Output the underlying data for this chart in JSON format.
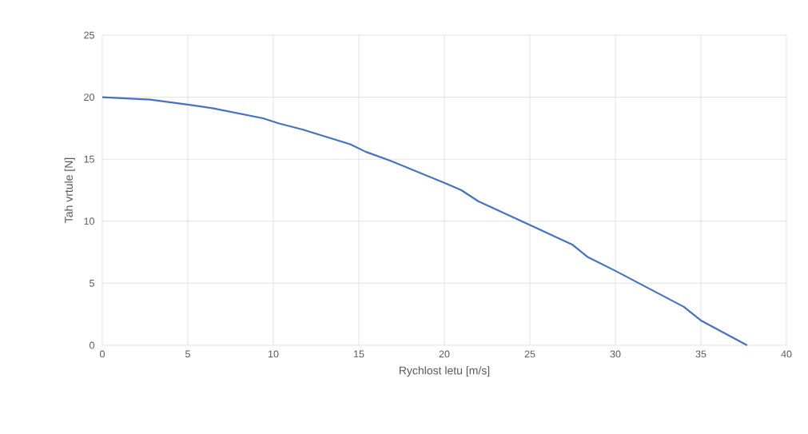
{
  "chart_data": {
    "type": "line",
    "xlabel": "Rychlost letu [m/s]",
    "ylabel": "Tah vrtule [N]",
    "x": [
      0,
      2.8,
      5,
      6.5,
      9.4,
      10.3,
      11.7,
      14.5,
      15.4,
      16.8,
      20,
      21,
      22,
      25,
      27.5,
      28.4,
      30,
      34,
      35,
      37.7
    ],
    "series": [
      {
        "color": "#4472c4",
        "values": [
          20,
          19.8,
          19.4,
          19.1,
          18.3,
          17.9,
          17.4,
          16.2,
          15.6,
          14.9,
          13.1,
          12.5,
          11.6,
          9.7,
          8.1,
          7.1,
          6,
          3.1,
          2,
          0
        ]
      }
    ],
    "xlim": [
      0,
      40
    ],
    "ylim": [
      0,
      25
    ],
    "xticks": [
      0,
      5,
      10,
      15,
      20,
      25,
      30,
      35,
      40
    ],
    "yticks": [
      0,
      5,
      10,
      15,
      20,
      25
    ],
    "grid": true,
    "marker": "none",
    "line_style": "solid"
  }
}
